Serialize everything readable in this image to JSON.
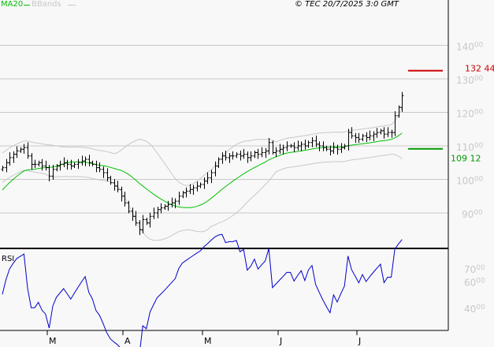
{
  "header": {
    "legend_ma": "MA20",
    "legend_bb": "BBands",
    "copyright": "© TEC 20/7/2025 3:0 GMT"
  },
  "colors": {
    "ma": "#00c000",
    "bb": "#c8c8c8",
    "bars": "#000000",
    "rsi": "#0000cc",
    "resistance": "#cc0000",
    "support": "#009900",
    "axis_text": "#c8c8c8"
  },
  "chart_data": {
    "type": "ohlc",
    "price_axis": {
      "ylim": [
        80,
        150
      ],
      "ticks": [
        {
          "int": "140",
          "dec": "00",
          "v": 140
        },
        {
          "int": "130",
          "dec": "00",
          "v": 130
        },
        {
          "int": "120",
          "dec": "00",
          "v": 120
        },
        {
          "int": "110",
          "dec": "00",
          "v": 110
        },
        {
          "int": "100",
          "dec": "00",
          "v": 100
        },
        {
          "int": "90",
          "dec": "00",
          "v": 90
        }
      ],
      "grid": true
    },
    "rsi_axis": {
      "label": "RSI",
      "ticks": [
        {
          "int": "70",
          "dec": "00",
          "v": 70
        },
        {
          "int": "60",
          "dec": "00",
          "v": 60
        },
        {
          "int": "40",
          "dec": "00",
          "v": 40
        }
      ]
    },
    "months": [
      {
        "label": "M",
        "bar": 13
      },
      {
        "label": "A",
        "bar": 34
      },
      {
        "label": "M",
        "bar": 56
      },
      {
        "label": "J",
        "bar": 77
      },
      {
        "label": "J",
        "bar": 99
      }
    ],
    "levels": [
      {
        "value": 132.44,
        "int": "132",
        "dec": "44",
        "kind": "resistance"
      },
      {
        "value": 109.12,
        "int": "109",
        "dec": "12",
        "kind": "support"
      }
    ],
    "indicators": [
      "MA20",
      "BBands",
      "RSI"
    ],
    "closes": [
      103.5,
      105,
      106.5,
      107.5,
      108.5,
      109,
      109.5,
      107,
      104.5,
      104.5,
      105,
      104,
      103.5,
      101,
      103,
      104,
      104.5,
      105,
      104.5,
      104,
      104.5,
      105,
      105.5,
      106,
      105,
      104.5,
      103.5,
      103,
      102,
      100.5,
      99,
      98,
      97,
      95,
      93,
      90.5,
      89,
      87,
      85,
      88,
      87,
      89,
      90,
      91,
      91.5,
      92,
      92.5,
      93,
      93.5,
      95,
      96,
      96.5,
      97,
      97.5,
      98,
      98.5,
      99.5,
      100.5,
      102,
      104,
      106,
      107,
      106.5,
      107,
      107,
      107.5,
      107,
      107.5,
      106.5,
      107,
      108,
      107.5,
      108,
      108.5,
      111,
      108,
      108.5,
      109,
      109.5,
      110,
      110,
      109.5,
      110,
      110.5,
      110,
      111,
      111.5,
      110.5,
      110,
      109.5,
      109,
      108.5,
      109.5,
      109,
      109.5,
      110,
      114,
      113,
      112.5,
      112,
      113,
      112.5,
      113,
      113.5,
      114,
      114.5,
      113.5,
      114,
      114,
      119,
      121.5,
      125
    ]
  }
}
